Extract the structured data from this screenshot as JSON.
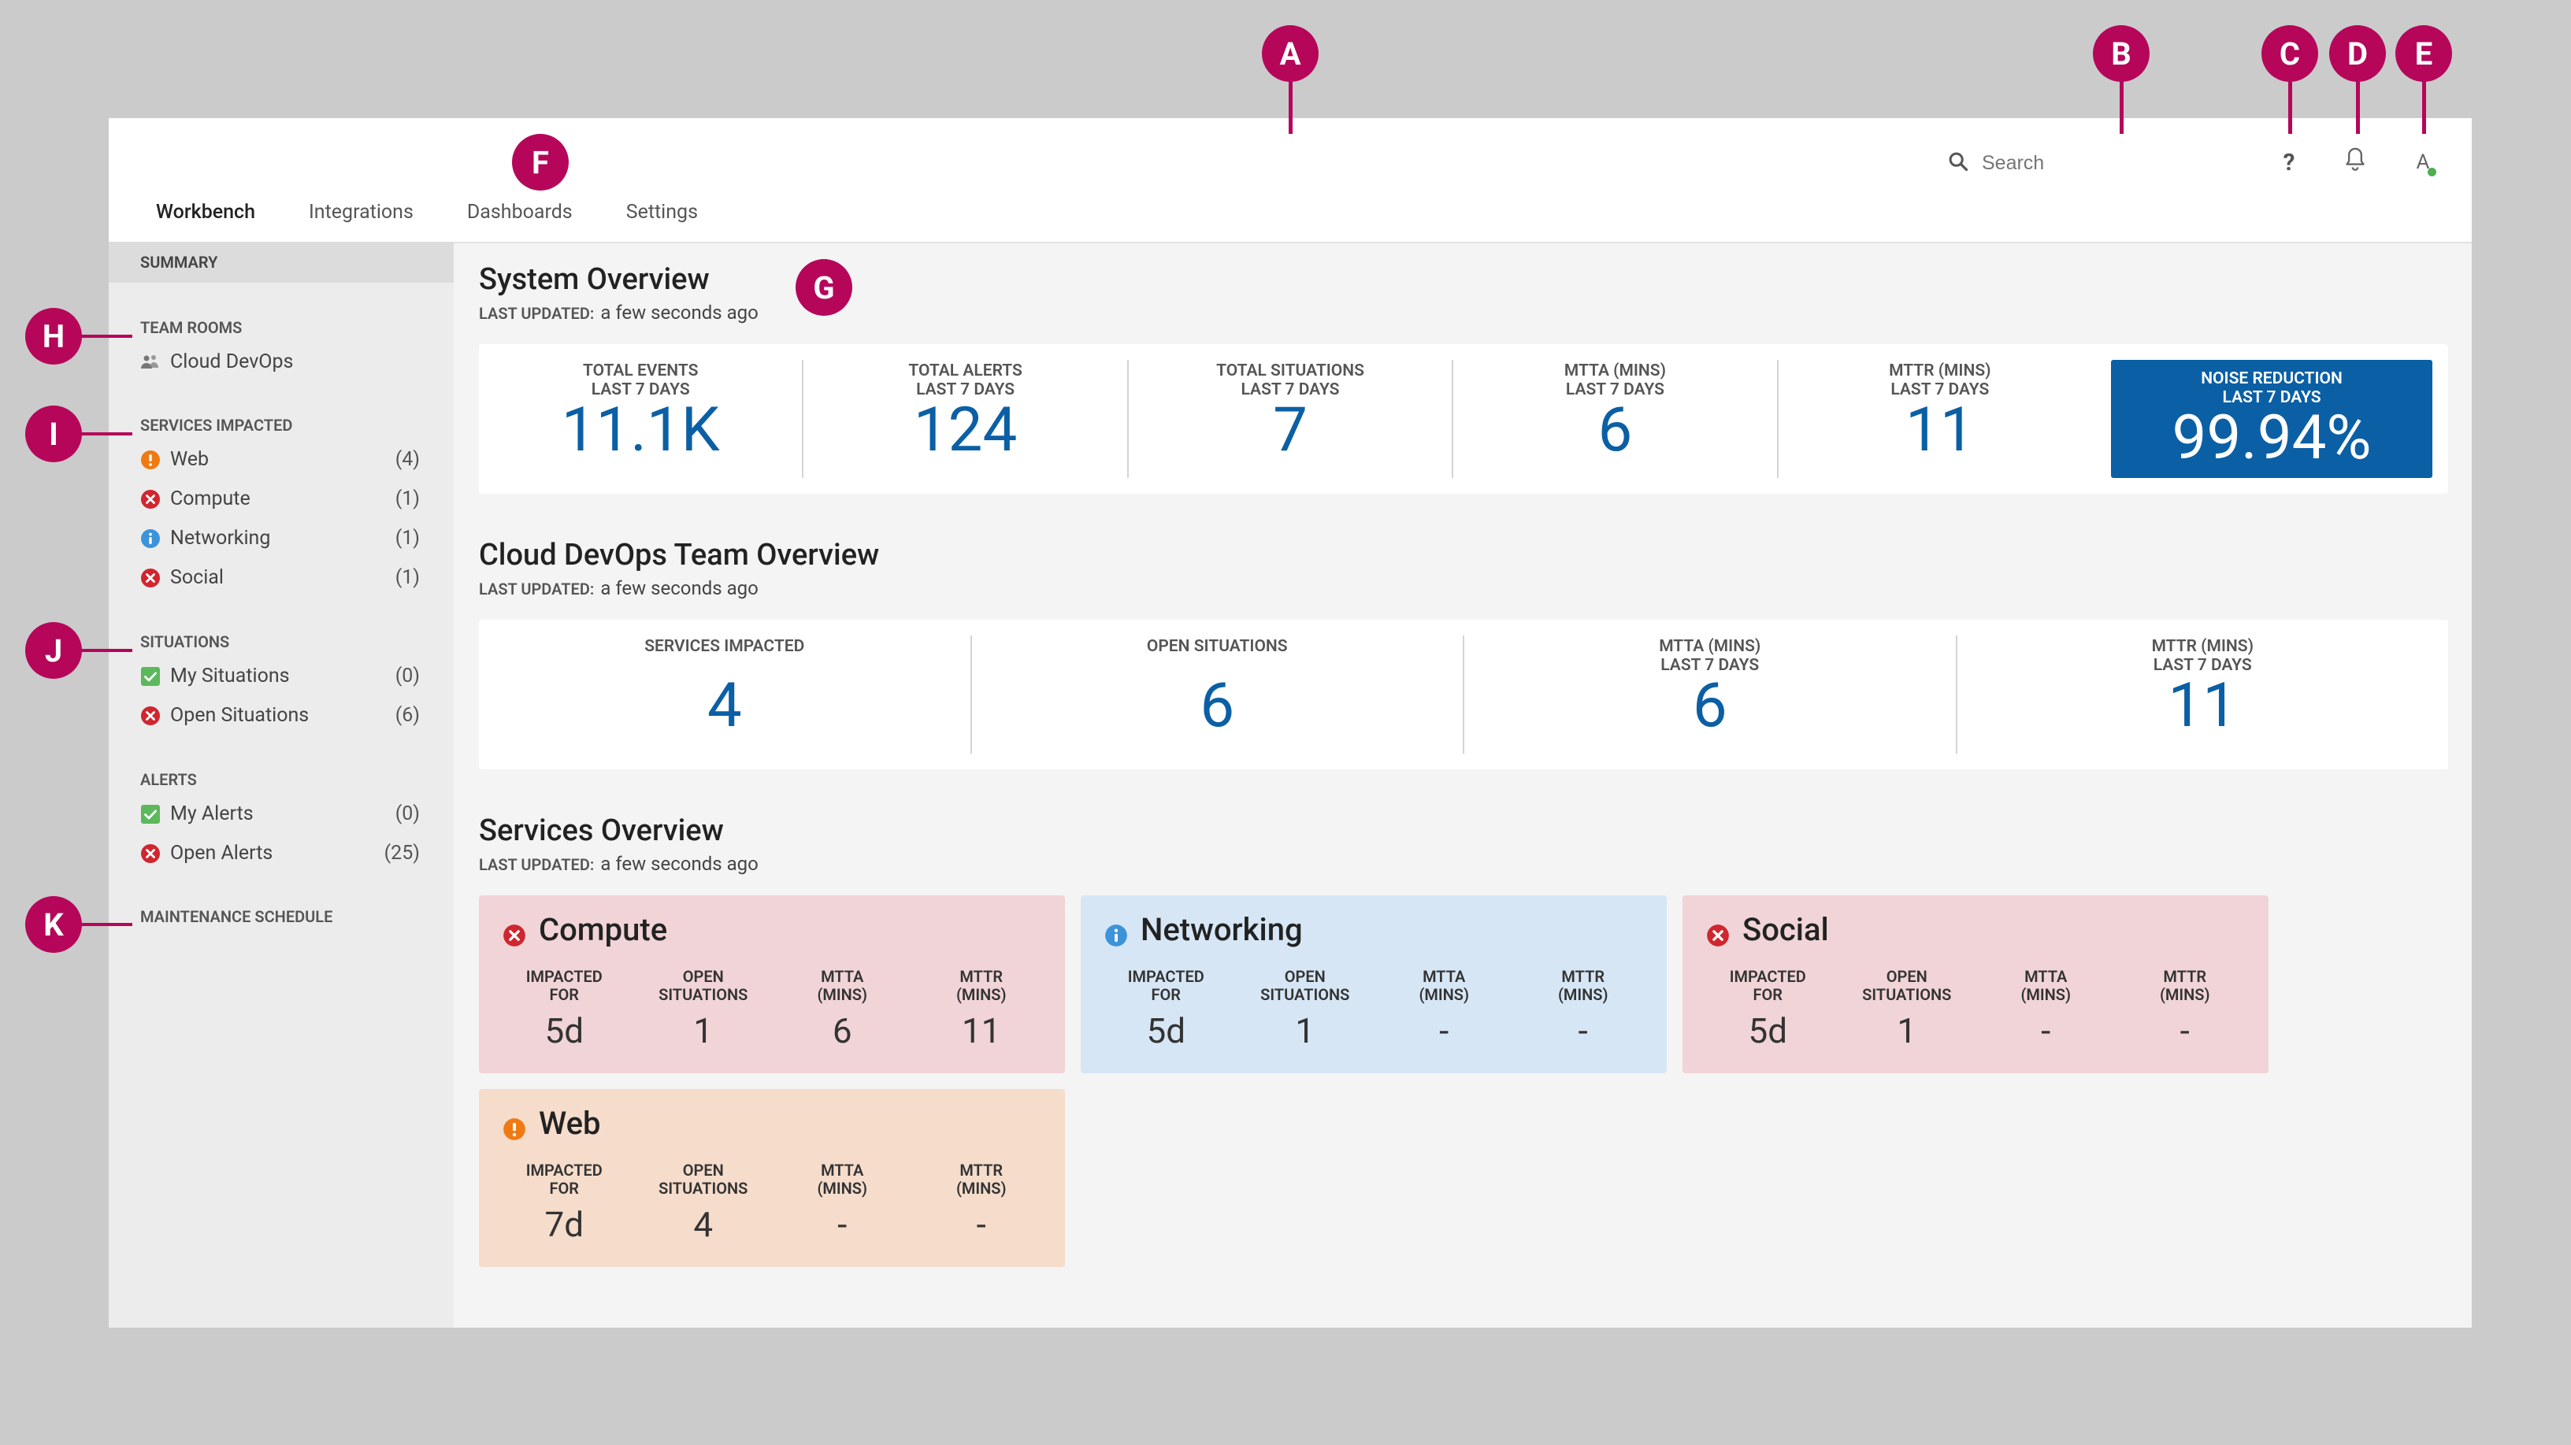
{
  "nav": {
    "tabs": [
      "Workbench",
      "Integrations",
      "Dashboards",
      "Settings"
    ]
  },
  "search": {
    "placeholder": "Search"
  },
  "header": {
    "help": "?",
    "user_initial": "A"
  },
  "sidebar": {
    "summary": "SUMMARY",
    "team_rooms": {
      "title": "TEAM ROOMS",
      "items": [
        {
          "label": "Cloud DevOps"
        }
      ]
    },
    "services_impacted": {
      "title": "SERVICES IMPACTED",
      "items": [
        {
          "label": "Web",
          "count": "(4)",
          "status": "warning"
        },
        {
          "label": "Compute",
          "count": "(1)",
          "status": "error"
        },
        {
          "label": "Networking",
          "count": "(1)",
          "status": "info"
        },
        {
          "label": "Social",
          "count": "(1)",
          "status": "error"
        }
      ]
    },
    "situations": {
      "title": "SITUATIONS",
      "items": [
        {
          "label": "My Situations",
          "count": "(0)",
          "status": "ok"
        },
        {
          "label": "Open Situations",
          "count": "(6)",
          "status": "error"
        }
      ]
    },
    "alerts": {
      "title": "ALERTS",
      "items": [
        {
          "label": "My Alerts",
          "count": "(0)",
          "status": "ok"
        },
        {
          "label": "Open Alerts",
          "count": "(25)",
          "status": "error"
        }
      ]
    },
    "maintenance": "MAINTENANCE SCHEDULE"
  },
  "system_overview": {
    "title": "System Overview",
    "updated_label": "LAST UPDATED:",
    "updated_value": "a few seconds ago",
    "metrics": [
      {
        "label1": "TOTAL EVENTS",
        "label2": "LAST 7 DAYS",
        "value": "11.1K"
      },
      {
        "label1": "TOTAL ALERTS",
        "label2": "LAST 7 DAYS",
        "value": "124"
      },
      {
        "label1": "TOTAL SITUATIONS",
        "label2": "LAST 7 DAYS",
        "value": "7"
      },
      {
        "label1": "MTTA (MINS)",
        "label2": "LAST 7 DAYS",
        "value": "6"
      },
      {
        "label1": "MTTR (MINS)",
        "label2": "LAST 7 DAYS",
        "value": "11"
      },
      {
        "label1": "NOISE REDUCTION",
        "label2": "LAST 7 DAYS",
        "value": "99.94%"
      }
    ]
  },
  "team_overview": {
    "title": "Cloud DevOps Team Overview",
    "updated_label": "LAST UPDATED:",
    "updated_value": "a few seconds ago",
    "metrics": [
      {
        "label1": "SERVICES IMPACTED",
        "label2": "",
        "value": "4"
      },
      {
        "label1": "OPEN SITUATIONS",
        "label2": "",
        "value": "6"
      },
      {
        "label1": "MTTA (MINS)",
        "label2": "LAST 7 DAYS",
        "value": "6"
      },
      {
        "label1": "MTTR (MINS)",
        "label2": "LAST 7 DAYS",
        "value": "11"
      }
    ]
  },
  "services_overview": {
    "title": "Services Overview",
    "updated_label": "LAST UPDATED:",
    "updated_value": "a few seconds ago",
    "col_labels": [
      [
        "IMPACTED",
        "FOR"
      ],
      [
        "OPEN",
        "SITUATIONS"
      ],
      [
        "MTTA",
        "(MINS)"
      ],
      [
        "MTTR",
        "(MINS)"
      ]
    ],
    "services": [
      {
        "name": "Compute",
        "status": "error",
        "values": [
          "5d",
          "1",
          "6",
          "11"
        ]
      },
      {
        "name": "Networking",
        "status": "info",
        "values": [
          "5d",
          "1",
          "-",
          "-"
        ]
      },
      {
        "name": "Social",
        "status": "error",
        "values": [
          "5d",
          "1",
          "-",
          "-"
        ]
      },
      {
        "name": "Web",
        "status": "warning",
        "values": [
          "7d",
          "4",
          "-",
          "-"
        ]
      }
    ]
  },
  "callouts": [
    "A",
    "B",
    "C",
    "D",
    "E",
    "F",
    "G",
    "H",
    "I",
    "J",
    "K"
  ],
  "colors": {
    "accent": "#0b5fa5",
    "callout": "#b5065a",
    "error": "#d0262f",
    "warning": "#ef7a14",
    "info": "#3c93d9",
    "ok": "#5cb85c",
    "error_bg": "#f1d4d7",
    "info_bg": "#d6e6f5",
    "warning_bg": "#f5dccb"
  }
}
